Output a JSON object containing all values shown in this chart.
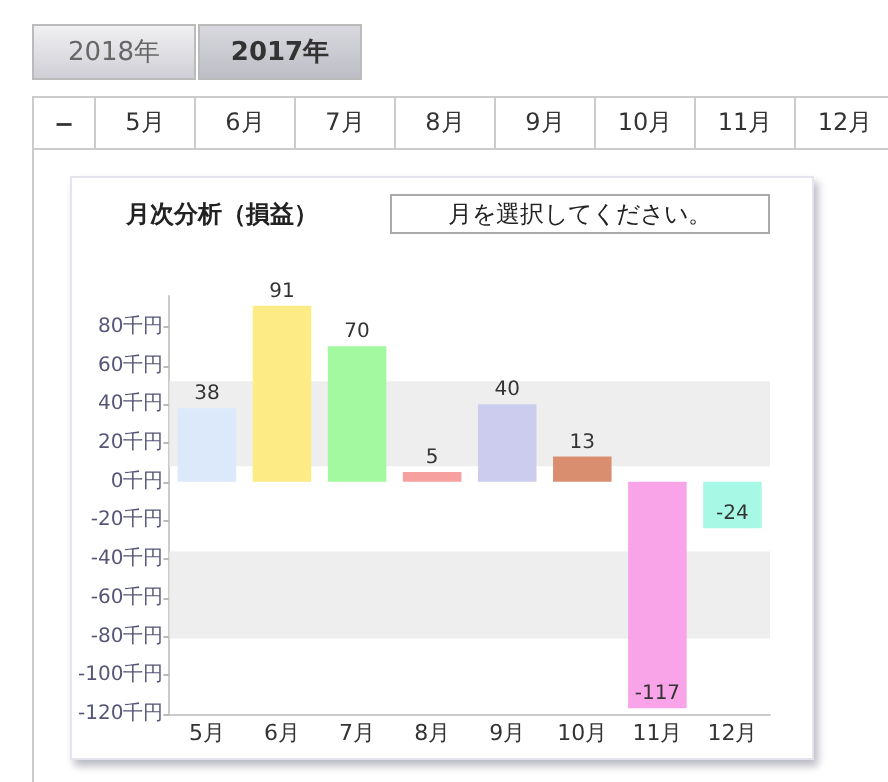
{
  "chart_data": {
    "type": "bar",
    "title": "月次分析（損益）",
    "annotations": [
      "2018年",
      "2017年",
      "−",
      "5月",
      "6月",
      "7月",
      "8月",
      "9月",
      "10月",
      "11月",
      "12月",
      "月を選択してください。"
    ],
    "categories": [
      "5月",
      "6月",
      "7月",
      "8月",
      "9月",
      "10月",
      "11月",
      "12月"
    ],
    "values": [
      38,
      91,
      70,
      5,
      40,
      13,
      -117,
      -24
    ],
    "colors": [
      "#dbe9fb",
      "#fdeb85",
      "#a3f99f",
      "#f6a0a0",
      "#cccdee",
      "#d98e6f",
      "#f9a3e9",
      "#a7f9e6"
    ],
    "data_labels": true,
    "ylim": [
      -120,
      96
    ],
    "yticks": [
      {
        "value": -120,
        "label": "-120千円"
      },
      {
        "value": -100,
        "label": "-100千円"
      },
      {
        "value": -80,
        "label": "-80千円"
      },
      {
        "value": -60,
        "label": "-60千円"
      },
      {
        "value": -40,
        "label": "-40千円"
      },
      {
        "value": -20,
        "label": "-20千円"
      },
      {
        "value": 0,
        "label": "0千円"
      },
      {
        "value": 20,
        "label": "20千円"
      },
      {
        "value": 40,
        "label": "40千円"
      },
      {
        "value": 60,
        "label": "60千円"
      },
      {
        "value": 80,
        "label": "80千円"
      }
    ],
    "bands": [
      {
        "axis": "y",
        "from": 8,
        "to": 52,
        "color": "#eeeeee"
      },
      {
        "axis": "y",
        "from": -81,
        "to": -36,
        "color": "#eeeeee"
      }
    ],
    "grid": false
  }
}
